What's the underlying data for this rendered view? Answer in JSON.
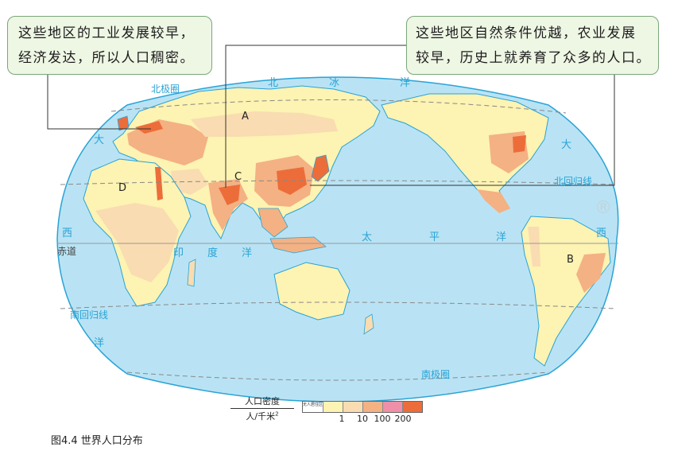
{
  "callouts": {
    "left": {
      "line1": "这些地区的工业发展较早，",
      "line2": "经济发达，所以人口稠密。"
    },
    "right": {
      "line1": "这些地区自然条件优越，农业发展",
      "line2": "较早，历史上就养育了众多的人口。"
    }
  },
  "map_labels": {
    "ocean_letters": {
      "arctic_1": "北",
      "arctic_2": "冰",
      "arctic_3": "洋",
      "atlantic_da_left": "大",
      "atlantic_xi": "西",
      "atlantic_yang": "洋",
      "indian_1": "印",
      "indian_2": "度",
      "indian_3": "洋",
      "pacific_tai": "太",
      "pacific_ping": "平",
      "pacific_yang": "洋",
      "atlantic_da_right": "大",
      "atlantic_xi_right": "西"
    },
    "lines": {
      "arctic_circle": "北极圈",
      "tropic_cancer": "北回归线",
      "equator": "赤道",
      "tropic_capricorn": "南回归线",
      "antarctic_circle": "南极圈"
    },
    "points": {
      "A": "A",
      "B": "B",
      "C": "C",
      "D": "D"
    },
    "registered": "®"
  },
  "legend": {
    "title_numerator": "人口密度",
    "title_denominator": "人/千米",
    "title_superscript": "2",
    "no_resident": "无人居住区",
    "ticks": [
      "1",
      "10",
      "100",
      "200"
    ],
    "colors": [
      "#ffffff",
      "#fdf3b2",
      "#f9dcb1",
      "#f4b183",
      "#ef8fa8",
      "#ec6d3a"
    ]
  },
  "caption": "图4.4  世界人口分布",
  "colors": {
    "ocean": "#b9e3f4",
    "coast": "#29a3d6",
    "low_density": "#fdf3b2",
    "mid_density": "#f9dcb1",
    "high_density": "#f4b183",
    "very_high": "#ec6d3a",
    "leader_line": "#333333"
  }
}
